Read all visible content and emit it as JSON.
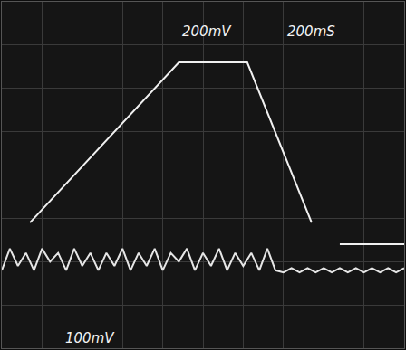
{
  "chart_data": {
    "type": "line",
    "annotations": [
      "200mV",
      "200mS",
      "100mV"
    ],
    "xlim": [
      0,
      10
    ],
    "ylim": [
      0,
      8
    ],
    "xticks": [
      0,
      1,
      2,
      3,
      4,
      5,
      6,
      7,
      8,
      9,
      10
    ],
    "yticks": [
      0,
      1,
      2,
      3,
      4,
      5,
      6,
      7,
      8
    ],
    "grid": true,
    "tick_labels": false,
    "series": [
      {
        "color": "#f0f0f0",
        "x": [
          0.7,
          4.4,
          6.1,
          7.7,
          8.0,
          8.4,
          10.0
        ],
        "values": [
          2.9,
          6.6,
          6.6,
          2.9,
          null,
          2.4,
          2.4
        ]
      },
      {
        "color": "#e6e6e6",
        "x": [
          0.0,
          0.2,
          0.4,
          0.6,
          0.8,
          1.0,
          1.2,
          1.4,
          1.6,
          1.8,
          2.0,
          2.2,
          2.4,
          2.6,
          2.8,
          3.0,
          3.2,
          3.4,
          3.6,
          3.8,
          4.0,
          4.2,
          4.4,
          4.6,
          4.8,
          5.0,
          5.2,
          5.4,
          5.6,
          5.8,
          6.0,
          6.2,
          6.4,
          6.6,
          6.8,
          7.0,
          7.2,
          7.4,
          7.6,
          7.8,
          8.0,
          8.2,
          8.4,
          8.6,
          8.8,
          9.0,
          9.2,
          9.4,
          9.6,
          9.8,
          10.0
        ],
        "values": [
          1.8,
          2.3,
          1.9,
          2.2,
          1.8,
          2.3,
          2.0,
          2.2,
          1.8,
          2.3,
          1.9,
          2.2,
          1.8,
          2.2,
          1.9,
          2.3,
          1.8,
          2.2,
          1.9,
          2.3,
          1.8,
          2.2,
          2.0,
          2.3,
          1.8,
          2.2,
          1.9,
          2.3,
          1.8,
          2.2,
          1.9,
          2.2,
          1.8,
          2.3,
          1.8,
          1.75,
          1.85,
          1.75,
          1.85,
          1.75,
          1.85,
          1.75,
          1.85,
          1.75,
          1.85,
          1.75,
          1.85,
          1.75,
          1.85,
          1.75,
          1.85
        ]
      }
    ]
  }
}
